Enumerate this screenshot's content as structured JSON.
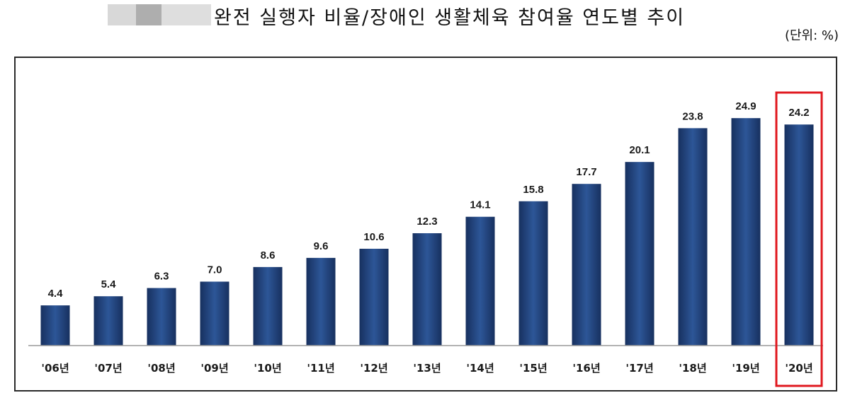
{
  "header": {
    "title": "완전 실행자 비율/장애인 생활체육 참여율 연도별 추이",
    "unit": "(단위: %)"
  },
  "colors": {
    "bar": "#1f3f7a",
    "bar_light": "#2d5697",
    "highlight_box": "#e0181f"
  },
  "chart_data": {
    "type": "bar",
    "title": "완전 실행자 비율/장애인 생활체육 참여율 연도별 추이",
    "xlabel": "",
    "ylabel": "",
    "unit": "%",
    "categories": [
      "'06년",
      "'07년",
      "'08년",
      "'09년",
      "'10년",
      "'11년",
      "'12년",
      "'13년",
      "'14년",
      "'15년",
      "'16년",
      "'17년",
      "'18년",
      "'19년",
      "'20년"
    ],
    "values": [
      4.4,
      5.4,
      6.3,
      7.0,
      8.6,
      9.6,
      10.6,
      12.3,
      14.1,
      15.8,
      17.7,
      20.1,
      23.8,
      24.9,
      24.2
    ],
    "value_labels": [
      "4.4",
      "5.4",
      "6.3",
      "7.0",
      "8.6",
      "9.6",
      "10.6",
      "12.3",
      "14.1",
      "15.8",
      "17.7",
      "20.1",
      "23.8",
      "24.9",
      "24.2"
    ],
    "highlighted_category": "'20년",
    "ylim": [
      0,
      27
    ],
    "grid": false,
    "legend": "none"
  }
}
